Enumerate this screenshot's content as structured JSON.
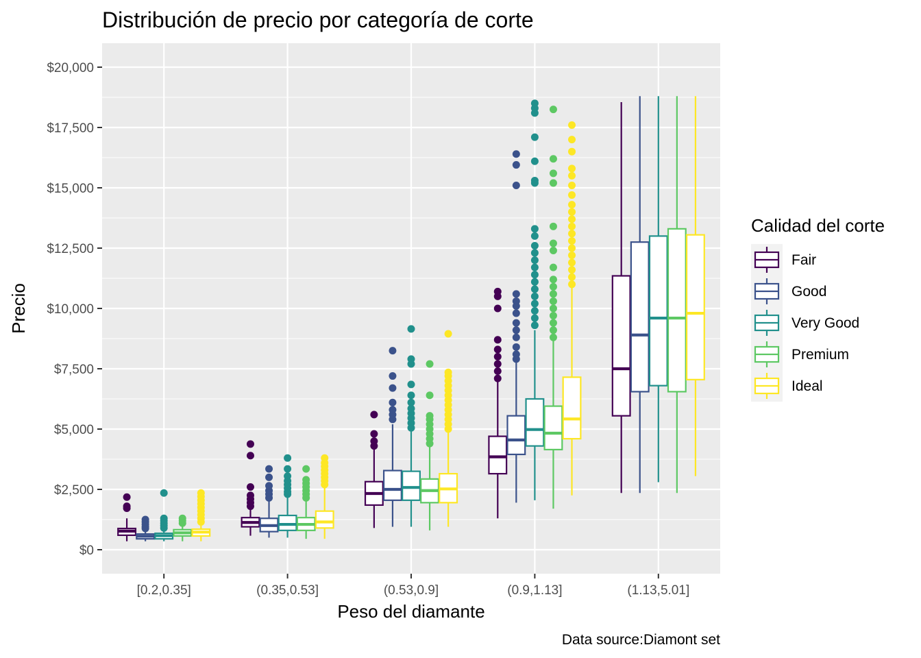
{
  "chart_data": {
    "type": "boxplot",
    "title": "Distribución de precio por categoría de corte",
    "xlabel": "Peso del diamante",
    "ylabel": "Precio",
    "caption": "Data source:Diamont set",
    "legend_title": "Calidad del corte",
    "legend_position": "right",
    "grid": true,
    "ylim": [
      -1000,
      21000
    ],
    "y_ticks": [
      0,
      2500,
      5000,
      7500,
      10000,
      12500,
      15000,
      17500,
      20000
    ],
    "y_tick_labels": [
      "$0",
      "$2,500",
      "$5,000",
      "$7,500",
      "$10,000",
      "$12,500",
      "$15,000",
      "$17,500",
      "$20,000"
    ],
    "categories": [
      "[0.2,0.35]",
      "(0.35,0.53]",
      "(0.53,0.9]",
      "(0.9,1.13]",
      "(1.13,5.01]"
    ],
    "series": [
      {
        "name": "Fair",
        "color": "#440154",
        "boxes": [
          {
            "min": 350,
            "q1": 600,
            "median": 770,
            "q3": 880,
            "max": 1300,
            "outliers": [
              1720,
              1800,
              2180
            ]
          },
          {
            "min": 580,
            "q1": 950,
            "median": 1130,
            "q3": 1330,
            "max": 1750,
            "outliers": [
              1800,
              1950,
              2100,
              2250,
              2600,
              3900,
              4380
            ]
          },
          {
            "min": 900,
            "q1": 1850,
            "median": 2330,
            "q3": 2820,
            "max": 4250,
            "outliers": [
              4300,
              4500,
              4800,
              5600
            ]
          },
          {
            "min": 1300,
            "q1": 3150,
            "median": 3850,
            "q3": 4700,
            "max": 7000,
            "outliers": [
              7100,
              7400,
              7700,
              8000,
              8300,
              8700,
              10000,
              10500,
              10700
            ]
          },
          {
            "min": 2350,
            "q1": 5550,
            "median": 7500,
            "q3": 11350,
            "max": 18550,
            "outliers": []
          }
        ]
      },
      {
        "name": "Good",
        "color": "#3b528b",
        "boxes": [
          {
            "min": 350,
            "q1": 450,
            "median": 560,
            "q3": 650,
            "max": 800,
            "outliers": [
              880,
              950,
              1050,
              1150,
              1250
            ]
          },
          {
            "min": 500,
            "q1": 750,
            "median": 1000,
            "q3": 1300,
            "max": 2050,
            "outliers": [
              2150,
              2300,
              2450,
              2650,
              3000,
              3350
            ]
          },
          {
            "min": 950,
            "q1": 2050,
            "median": 2500,
            "q3": 3280,
            "max": 5200,
            "outliers": [
              5400,
              5600,
              5800,
              6100,
              6700,
              7200,
              8250
            ]
          },
          {
            "min": 1950,
            "q1": 3950,
            "median": 4550,
            "q3": 5550,
            "max": 7800,
            "outliers": [
              7900,
              8100,
              8400,
              8800,
              9100,
              9400,
              9800,
              10100,
              10300,
              10600,
              15100,
              15950,
              16400
            ]
          },
          {
            "min": 2350,
            "q1": 6550,
            "median": 8900,
            "q3": 12750,
            "max": 18800,
            "outliers": []
          }
        ]
      },
      {
        "name": "Very Good",
        "color": "#21908c",
        "boxes": [
          {
            "min": 350,
            "q1": 450,
            "median": 580,
            "q3": 680,
            "max": 850,
            "outliers": [
              900,
              1000,
              1100,
              1200,
              1300,
              2350
            ]
          },
          {
            "min": 500,
            "q1": 800,
            "median": 1050,
            "q3": 1420,
            "max": 2200,
            "outliers": [
              2300,
              2400,
              2550,
              2700,
              2850,
              3050,
              3350,
              3800
            ]
          },
          {
            "min": 950,
            "q1": 2050,
            "median": 2580,
            "q3": 3250,
            "max": 4950,
            "outliers": [
              5050,
              5250,
              5450,
              5650,
              5850,
              6100,
              6400,
              6850,
              7700,
              7900,
              9150
            ]
          },
          {
            "min": 2050,
            "q1": 4300,
            "median": 4980,
            "q3": 6250,
            "max": 9100,
            "outliers": [
              9300,
              9600,
              9900,
              10200,
              10500,
              10800,
              11100,
              11400,
              11700,
              12000,
              12300,
              12600,
              13000,
              13300,
              15200,
              15300,
              16100,
              17100,
              18100,
              18300,
              18500
            ]
          },
          {
            "min": 2800,
            "q1": 6800,
            "median": 9600,
            "q3": 13000,
            "max": 18800,
            "outliers": []
          }
        ]
      },
      {
        "name": "Premium",
        "color": "#5dc863",
        "boxes": [
          {
            "min": 350,
            "q1": 570,
            "median": 700,
            "q3": 830,
            "max": 1000,
            "outliers": [
              1100,
              1200,
              1300
            ]
          },
          {
            "min": 450,
            "q1": 800,
            "median": 1050,
            "q3": 1330,
            "max": 2050,
            "outliers": [
              2150,
              2300,
              2450,
              2600,
              2750,
              2900,
              3350
            ]
          },
          {
            "min": 800,
            "q1": 1950,
            "median": 2450,
            "q3": 2930,
            "max": 4300,
            "outliers": [
              4400,
              4600,
              4800,
              5000,
              5200,
              5400,
              5550,
              6400,
              7700
            ]
          },
          {
            "min": 1700,
            "q1": 4150,
            "median": 4830,
            "q3": 5950,
            "max": 8700,
            "outliers": [
              8800,
              9100,
              9400,
              9700,
              10000,
              10300,
              10600,
              10900,
              11200,
              11700,
              12400,
              12700,
              13400,
              15200,
              15600,
              16200,
              18250
            ]
          },
          {
            "min": 2350,
            "q1": 6550,
            "median": 9600,
            "q3": 13300,
            "max": 18800,
            "outliers": []
          }
        ]
      },
      {
        "name": "Ideal",
        "color": "#fde725",
        "boxes": [
          {
            "min": 350,
            "q1": 570,
            "median": 730,
            "q3": 850,
            "max": 1000,
            "outliers": [
              1150,
              1300,
              1450,
              1600,
              1750,
              1900,
              2050,
              2200,
              2350
            ]
          },
          {
            "min": 450,
            "q1": 900,
            "median": 1150,
            "q3": 1600,
            "max": 2600,
            "outliers": [
              2700,
              2850,
              3000,
              3150,
              3300,
              3450,
              3600,
              3800
            ]
          },
          {
            "min": 950,
            "q1": 1950,
            "median": 2520,
            "q3": 3150,
            "max": 4900,
            "outliers": [
              5000,
              5200,
              5400,
              5600,
              5800,
              6000,
              6200,
              6400,
              6600,
              6800,
              7000,
              7200,
              7350,
              8950
            ]
          },
          {
            "min": 2250,
            "q1": 4600,
            "median": 5420,
            "q3": 7150,
            "max": 10900,
            "outliers": [
              11000,
              11300,
              11600,
              11900,
              12200,
              12500,
              12800,
              13100,
              13400,
              13700,
              14000,
              14300,
              14700,
              15100,
              15500,
              15800,
              16500,
              17000,
              17600
            ]
          },
          {
            "min": 3050,
            "q1": 7050,
            "median": 9800,
            "q3": 13050,
            "max": 18800,
            "outliers": []
          }
        ]
      }
    ]
  }
}
